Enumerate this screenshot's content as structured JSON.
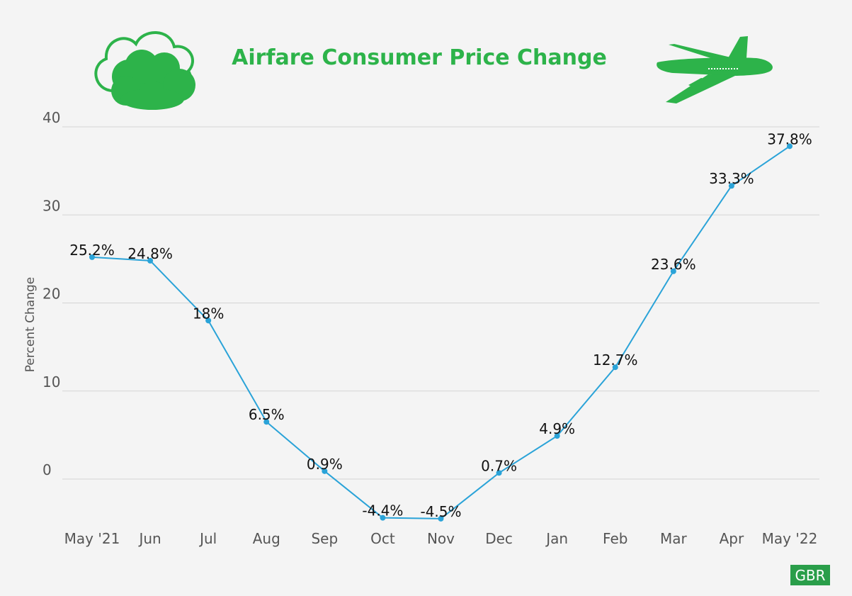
{
  "chart_data": {
    "type": "line",
    "title": "Airfare Consumer Price Change",
    "xlabel": "",
    "ylabel": "Percent Change",
    "categories": [
      "May '21",
      "Jun",
      "Jul",
      "Aug",
      "Sep",
      "Oct",
      "Nov",
      "Dec",
      "Jan",
      "Feb",
      "Mar",
      "Apr",
      "May '22"
    ],
    "values": [
      25.2,
      24.8,
      18,
      6.5,
      0.9,
      -4.4,
      -4.5,
      0.7,
      4.9,
      12.7,
      23.6,
      33.3,
      37.8
    ],
    "data_labels": [
      "25.2%",
      "24.8%",
      "18%",
      "6.5%",
      "0.9%",
      "-4.4%",
      "-4.5%",
      "0.7%",
      "4.9%",
      "12.7%",
      "23.6%",
      "33.3%",
      "37.8%"
    ],
    "yticks": [
      0,
      10,
      20,
      30,
      40
    ],
    "ylim": [
      -5,
      40
    ],
    "grid": true,
    "legend": "none"
  },
  "colors": {
    "title": "#2db34a",
    "line": "#2aa3d8",
    "icon": "#2db34a",
    "grid": "#d4d4d4",
    "badge": "#2a9e4a"
  },
  "icons": [
    "cloud-icon",
    "airplane-icon"
  ],
  "badge": "GBR"
}
